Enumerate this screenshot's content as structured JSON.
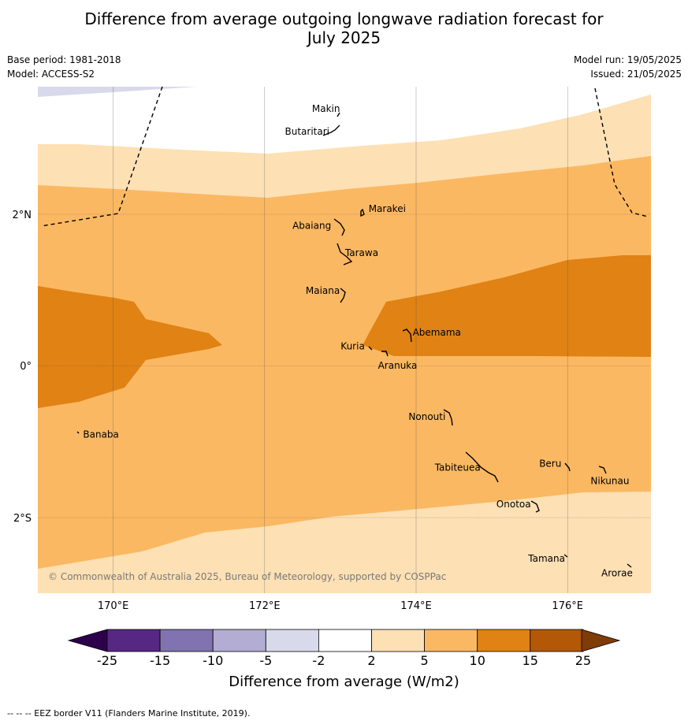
{
  "title": {
    "line1": "Difference from average outgoing longwave radiation forecast for",
    "line2": "July 2025"
  },
  "meta": {
    "base_period": "Base period: 1981-2018",
    "model": "Model: ACCESS-S2",
    "model_run": "Model run: 19/05/2025",
    "issued": "Issued: 21/05/2025"
  },
  "axes": {
    "lon_ticks": [
      "170°E",
      "172°E",
      "174°E",
      "176°E"
    ],
    "lat_ticks": [
      "2°N",
      "0°",
      "2°S"
    ]
  },
  "islands": [
    {
      "name": "Makin",
      "lon": 173.0,
      "lat": 3.35
    },
    {
      "name": "Butaritari",
      "lon": 172.85,
      "lat": 3.1
    },
    {
      "name": "Marakei",
      "lon": 173.3,
      "lat": 2.0
    },
    {
      "name": "Abaiang",
      "lon": 172.95,
      "lat": 1.85
    },
    {
      "name": "Tarawa",
      "lon": 173.0,
      "lat": 1.45
    },
    {
      "name": "Maiana",
      "lon": 173.0,
      "lat": 0.95
    },
    {
      "name": "Abemama",
      "lon": 173.85,
      "lat": 0.4
    },
    {
      "name": "Kuria",
      "lon": 173.4,
      "lat": 0.22
    },
    {
      "name": "Aranuka",
      "lon": 173.6,
      "lat": 0.15
    },
    {
      "name": "Nonouti",
      "lon": 174.4,
      "lat": -0.65
    },
    {
      "name": "Banaba",
      "lon": 169.54,
      "lat": -0.86
    },
    {
      "name": "Tabiteuea",
      "lon": 174.85,
      "lat": -1.3
    },
    {
      "name": "Beru",
      "lon": 176.0,
      "lat": -1.33
    },
    {
      "name": "Nikunau",
      "lon": 176.45,
      "lat": -1.37
    },
    {
      "name": "Onotoa",
      "lon": 175.58,
      "lat": -1.8
    },
    {
      "name": "Tamana",
      "lon": 175.98,
      "lat": -2.5
    },
    {
      "name": "Arorae",
      "lon": 176.82,
      "lat": -2.65
    }
  ],
  "colorbar": {
    "ticks": [
      "-25",
      "-15",
      "-10",
      "-5",
      "-2",
      "2",
      "5",
      "10",
      "15",
      "25"
    ],
    "colors": [
      "#562783",
      "#8073b0",
      "#b3acd3",
      "#d9d9ec",
      "#ffffff",
      "#fde0b4",
      "#fbb862",
      "#e08214",
      "#b35806"
    ],
    "under_color": "#2d004b",
    "over_color": "#7f3b08",
    "label": "Difference from average (W/m2)"
  },
  "copyright": "© Commonwealth of Australia 2025, Bureau of Meteorology, supported by COSPPac",
  "footer": "--  --  -- EEZ border V11 (Flanders Marine Institute, 2019)."
}
